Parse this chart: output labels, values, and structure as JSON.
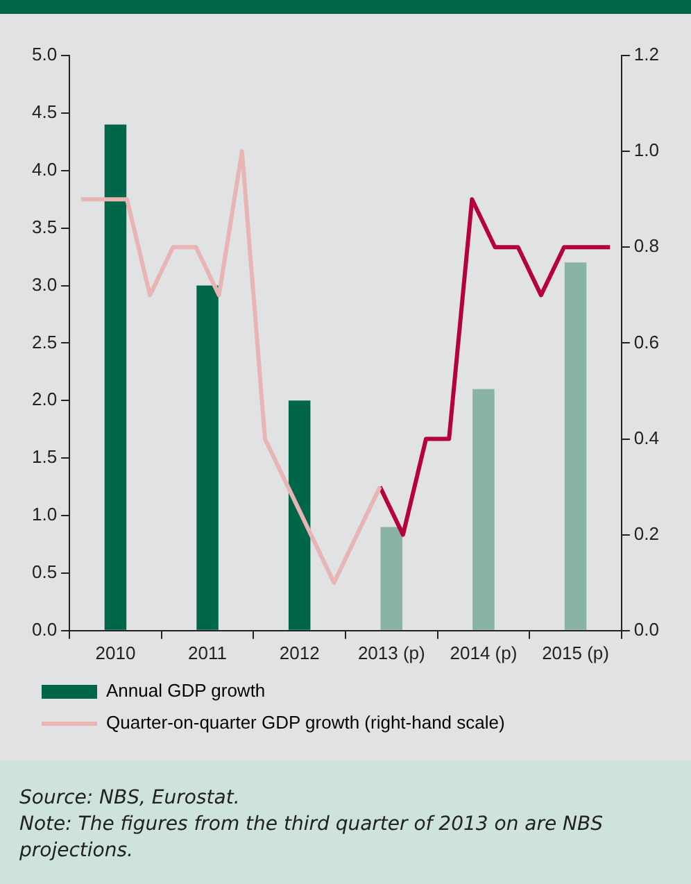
{
  "chart_data": {
    "type": "bar",
    "x": [
      2010.5,
      2011.5,
      2012.5,
      2013.5,
      2014.5,
      2015.5
    ],
    "series": [
      {
        "name": "Annual GDP growth",
        "colors": [
          "#00664a",
          "#00664a",
          "#00664a",
          "#88b3a5",
          "#88b3a5",
          "#88b3a5"
        ],
        "color": "#00664a",
        "values": [
          4.4,
          3.0,
          2.0,
          0.9,
          2.1,
          3.2
        ]
      },
      {
        "name": "Quarter-on-quarter GDP growth (right-hand scale)",
        "type": "line",
        "axis": "y2",
        "color": "#e8b4b4",
        "x": [
          2010.125,
          2010.375,
          2010.625,
          2010.875,
          2011.125,
          2011.375,
          2011.625,
          2011.875,
          2012.125,
          2012.375,
          2012.625,
          2012.875,
          2013.125,
          2013.375
        ],
        "values": [
          0.9,
          0.9,
          0.9,
          0.7,
          0.8,
          0.8,
          0.7,
          1.0,
          0.4,
          0.3,
          0.2,
          0.1,
          0.2,
          0.3
        ]
      },
      {
        "type": "line",
        "axis": "y2",
        "color": "#b5003c",
        "x": [
          2013.375,
          2013.625,
          2013.875,
          2014.125,
          2014.375,
          2014.625,
          2014.875,
          2015.125,
          2015.375,
          2015.625,
          2015.875
        ],
        "values": [
          0.3,
          0.2,
          0.4,
          0.4,
          0.9,
          0.8,
          0.8,
          0.7,
          0.8,
          0.8,
          0.8
        ]
      }
    ],
    "xlim": [
      2010,
      2016
    ],
    "xticks": [
      {
        "value": 2010,
        "label": null
      },
      {
        "value": 2010.5,
        "label": "2010"
      },
      {
        "value": 2011,
        "label": null
      },
      {
        "value": 2011.5,
        "label": "2011"
      },
      {
        "value": 2012,
        "label": null
      },
      {
        "value": 2012.5,
        "label": "2012"
      },
      {
        "value": 2013,
        "label": null
      },
      {
        "value": 2013.5,
        "label": "2013 (p)"
      },
      {
        "value": 2014,
        "label": null
      },
      {
        "value": 2014.5,
        "label": "2014 (p)"
      },
      {
        "value": 2015,
        "label": null
      },
      {
        "value": 2015.5,
        "label": "2015 (p)"
      },
      {
        "value": 2016,
        "label": null
      }
    ],
    "ylim": [
      0,
      5
    ],
    "yticks": [
      {
        "value": 0,
        "label": "0.0"
      },
      {
        "value": 0.5,
        "label": "0.5"
      },
      {
        "value": 1,
        "label": "1.0"
      },
      {
        "value": 1.5,
        "label": "1.5"
      },
      {
        "value": 2,
        "label": "2.0"
      },
      {
        "value": 2.5,
        "label": "2.5"
      },
      {
        "value": 3,
        "label": "3.0"
      },
      {
        "value": 3.5,
        "label": "3.5"
      },
      {
        "value": 4,
        "label": "4.0"
      },
      {
        "value": 4.5,
        "label": "4.5"
      },
      {
        "value": 5,
        "label": "5.0"
      }
    ],
    "y2lim": [
      0,
      1.2
    ],
    "y2ticks": [
      {
        "value": 0,
        "label": "0.0"
      },
      {
        "value": 0.2,
        "label": "0.2"
      },
      {
        "value": 0.4,
        "label": "0.4"
      },
      {
        "value": 0.6,
        "label": "0.6"
      },
      {
        "value": 0.8,
        "label": "0.8"
      },
      {
        "value": 1,
        "label": "1.0"
      },
      {
        "value": 1.2,
        "label": "1.2"
      }
    ],
    "grid": false,
    "legend": "bottom",
    "marker": "none",
    "line_style": "solid",
    "annotations": [
      "Source: NBS, Eurostat.",
      "Note: The figures from the third quarter of 2013 on are NBS projections."
    ]
  }
}
